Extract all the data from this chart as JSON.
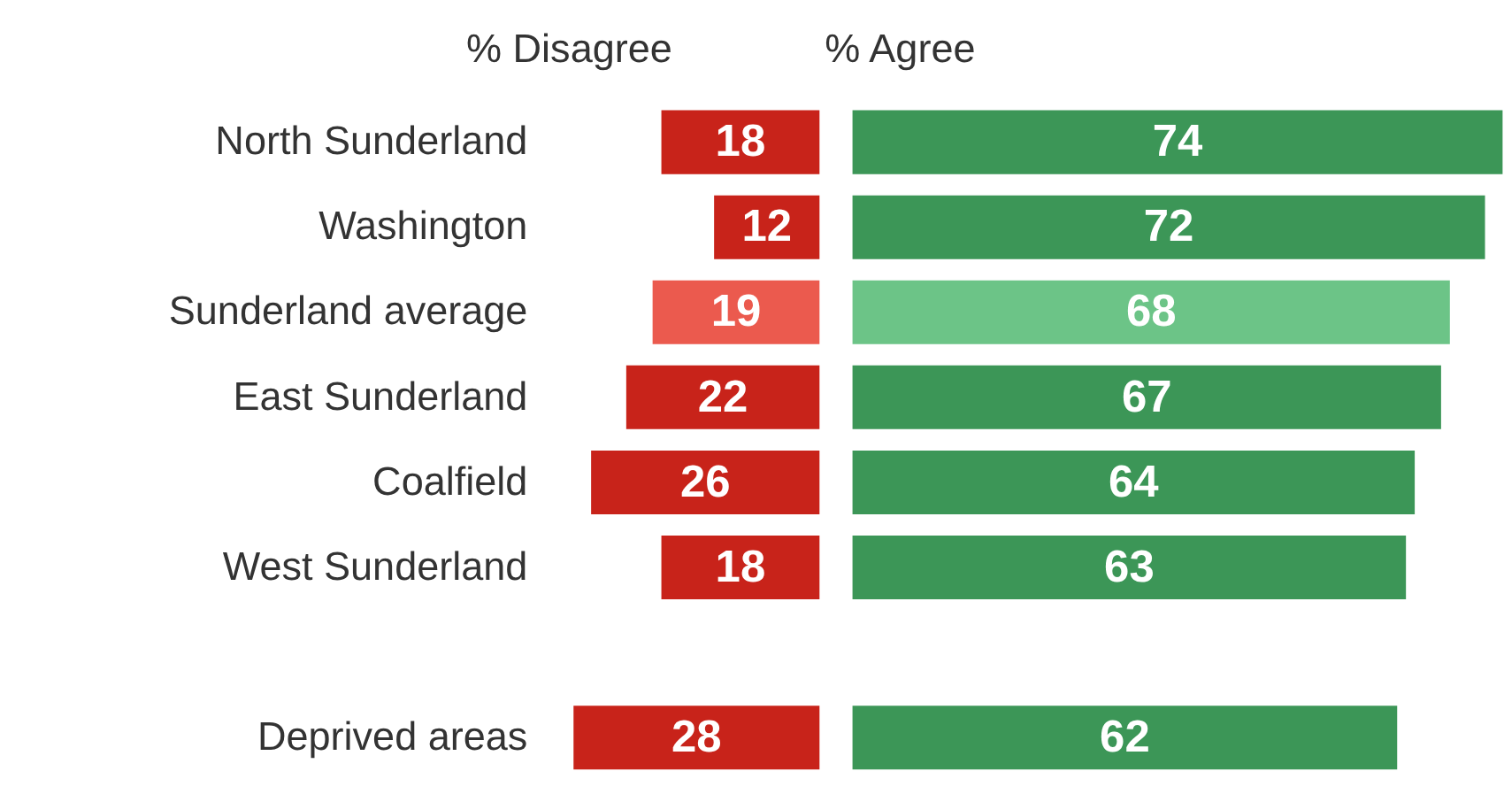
{
  "chart_data": [
    {
      "type": "bar",
      "orientation": "horizontal",
      "legend": false,
      "grid": false,
      "tick_labels": "y",
      "data_labels": true,
      "categories": [
        "North Sunderland",
        "Washington",
        "Sunderland average",
        "East Sunderland",
        "Coalfield",
        "West Sunderland",
        null,
        "Deprived areas"
      ],
      "xlim": [
        28,
        0
      ],
      "series": [
        {
          "name": "% Disagree",
          "colors": [
            "#c8231a",
            "#c8231a",
            "#eb5a4e",
            "#c8231a",
            "#c8231a",
            "#c8231a",
            "#c8231a",
            "#c8231a"
          ],
          "values": [
            18,
            12,
            19,
            22,
            26,
            18,
            null,
            28
          ]
        }
      ]
    },
    {
      "type": "bar",
      "orientation": "horizontal",
      "legend": false,
      "grid": false,
      "tick_labels": false,
      "data_labels": true,
      "categories": [
        null,
        null,
        null,
        null,
        null,
        null,
        null,
        null
      ],
      "xlim": [
        0,
        74
      ],
      "series": [
        {
          "name": "% Agree",
          "colors": [
            "#3c9657",
            "#3c9657",
            "#6cc487",
            "#3c9657",
            "#3c9657",
            "#3c9657",
            "#3c9657",
            "#3c9657"
          ],
          "values": [
            74,
            72,
            68,
            67,
            64,
            63,
            null,
            62
          ]
        }
      ]
    }
  ]
}
